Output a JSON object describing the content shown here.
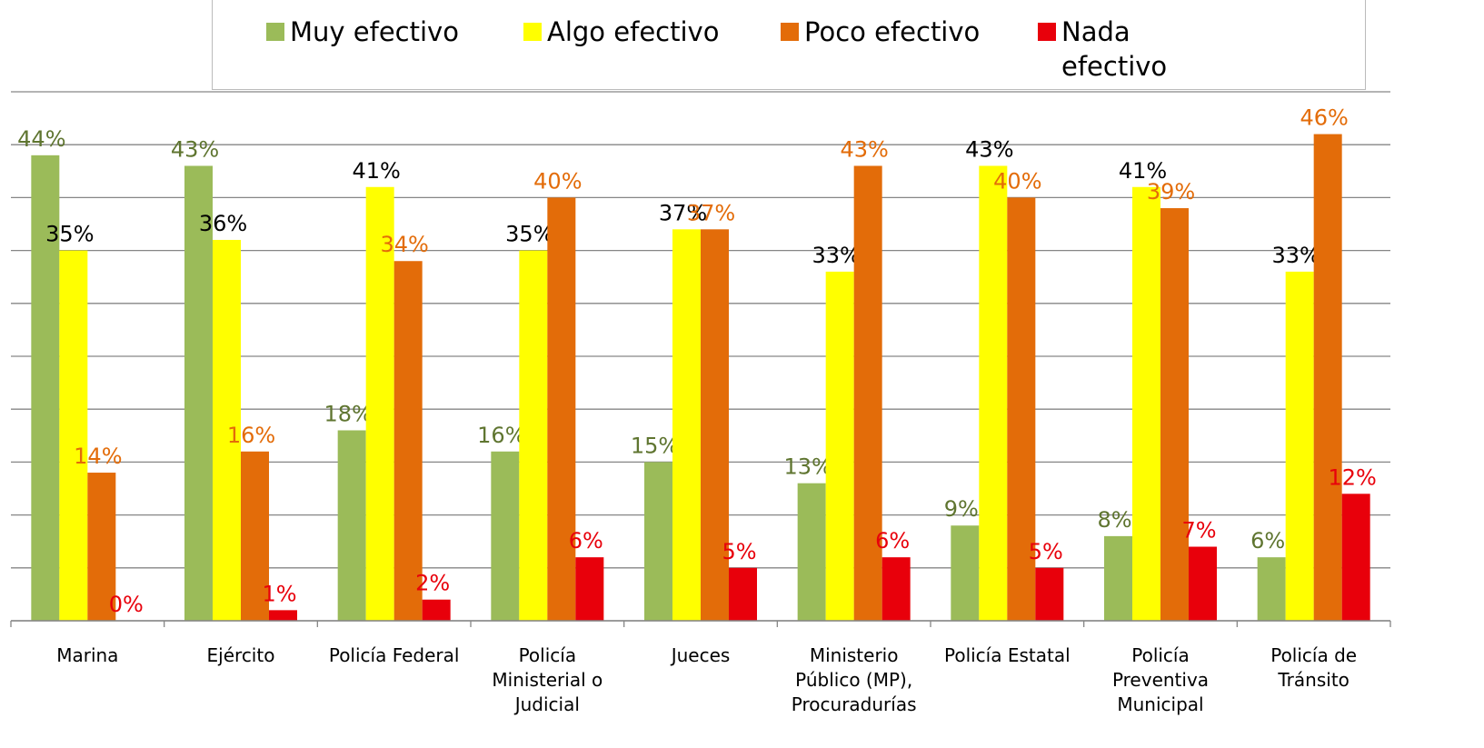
{
  "chart_data": {
    "type": "bar",
    "categories": [
      "Marina",
      "Ejército",
      "Policía Federal",
      "Policía Ministerial o Judicial",
      "Jueces",
      "Ministerio Público (MP), Procuradurías",
      "Policía Estatal",
      "Policía Preventiva Municipal",
      "Policía de Tránsito"
    ],
    "series": [
      {
        "name": "Muy efectivo",
        "color": "#9bbb59",
        "label_color": "#5f7530",
        "values": [
          44,
          43,
          18,
          16,
          15,
          13,
          9,
          8,
          6
        ],
        "value_labels": [
          "44%",
          "43%",
          "18%",
          "16%",
          "15%",
          "13%",
          "9%",
          "8%",
          "6%"
        ]
      },
      {
        "name": "Algo efectivo",
        "color": "#ffff00",
        "label_color": "#000000",
        "values": [
          35,
          36,
          41,
          35,
          37,
          33,
          43,
          41,
          33
        ],
        "value_labels": [
          "35%",
          "36%",
          "41%",
          "35%",
          "37%",
          "33%",
          "43%",
          "41%",
          "33%"
        ]
      },
      {
        "name": "Poco efectivo",
        "color": "#e36c09",
        "label_color": "#e36c09",
        "values": [
          14,
          16,
          34,
          40,
          37,
          43,
          40,
          39,
          46
        ],
        "value_labels": [
          "14%",
          "16%",
          "34%",
          "40%",
          "37%",
          "43%",
          "40%",
          "39%",
          "46%"
        ]
      },
      {
        "name": "Nada efectivo",
        "color": "#e8000b",
        "label_color": "#e8000b",
        "values": [
          0,
          1,
          2,
          6,
          5,
          6,
          5,
          7,
          12
        ],
        "value_labels": [
          "0%",
          "1%",
          "2%",
          "6%",
          "5%",
          "6%",
          "5%",
          "7%",
          "12%"
        ]
      }
    ],
    "ylim": [
      0,
      50
    ],
    "yticks": [
      0,
      5,
      10,
      15,
      20,
      25,
      30,
      35,
      40,
      45,
      50
    ],
    "grid": true
  }
}
